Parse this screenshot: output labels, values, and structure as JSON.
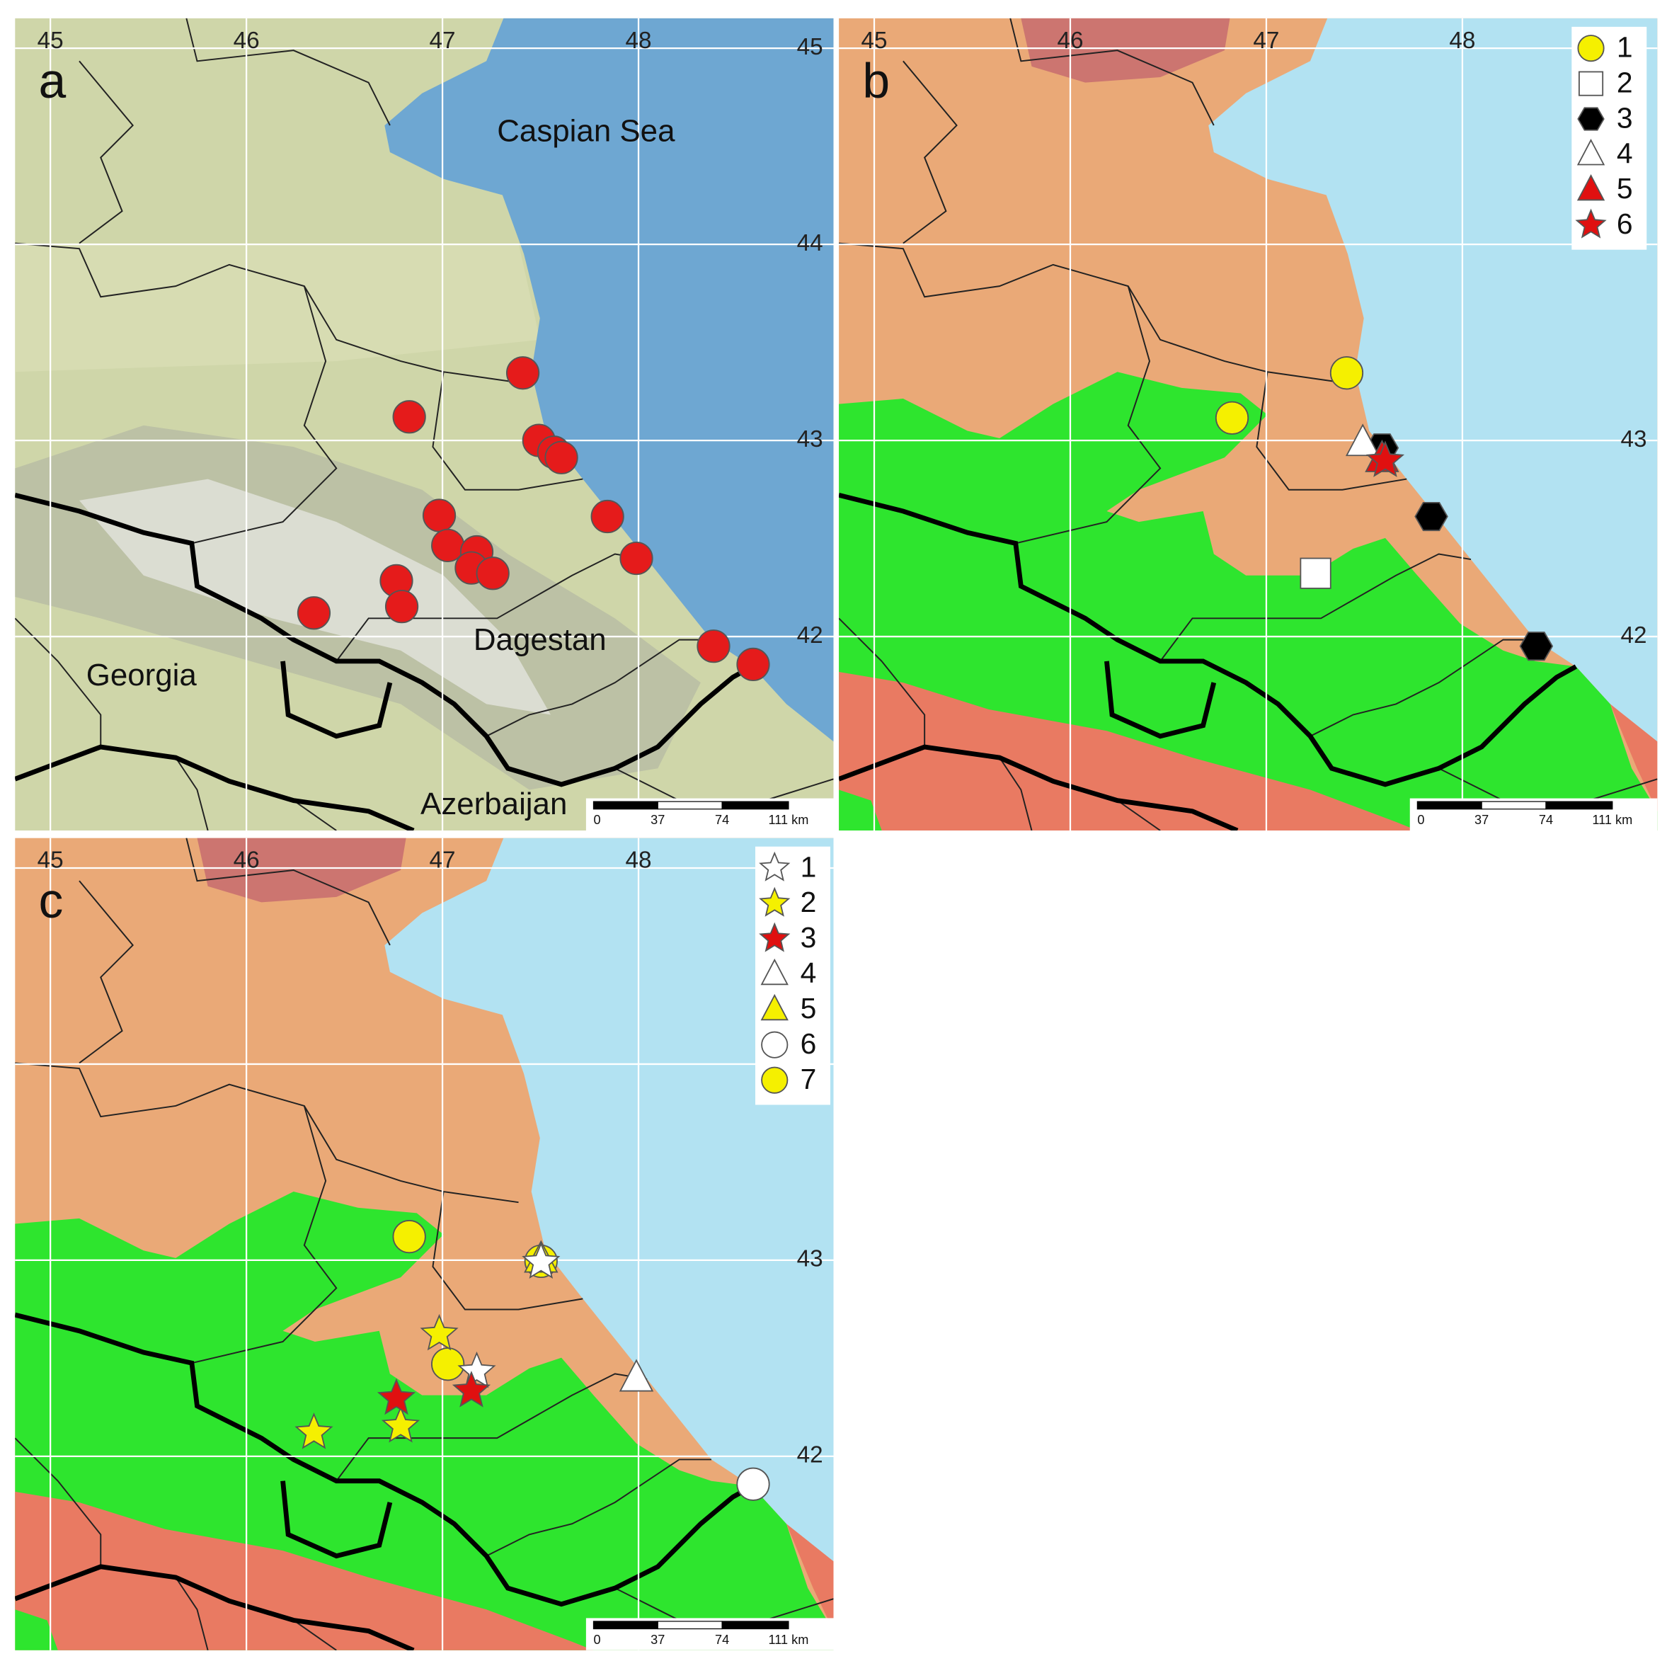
{
  "scale_bar": [
    "0",
    "37",
    "74",
    "111 km"
  ],
  "panels": [
    {
      "label": "a",
      "lon_labels": [
        "45",
        "46",
        "47",
        "48"
      ],
      "lat_labels": [
        "45",
        "44",
        "43",
        "42"
      ],
      "places": [
        "Caspian Sea",
        "Dagestan",
        "Georgia",
        "Azerbaijan"
      ]
    },
    {
      "label": "b",
      "lon_labels": [
        "45",
        "46",
        "47",
        "48"
      ],
      "lat_labels": [
        "43",
        "42"
      ],
      "legend": [
        "1",
        "2",
        "3",
        "4",
        "5",
        "6"
      ]
    },
    {
      "label": "c",
      "lon_labels": [
        "45",
        "46",
        "47",
        "48"
      ],
      "lat_labels": [
        "43",
        "42"
      ],
      "legend": [
        "1",
        "2",
        "3",
        "4",
        "5",
        "6",
        "7"
      ]
    }
  ]
}
